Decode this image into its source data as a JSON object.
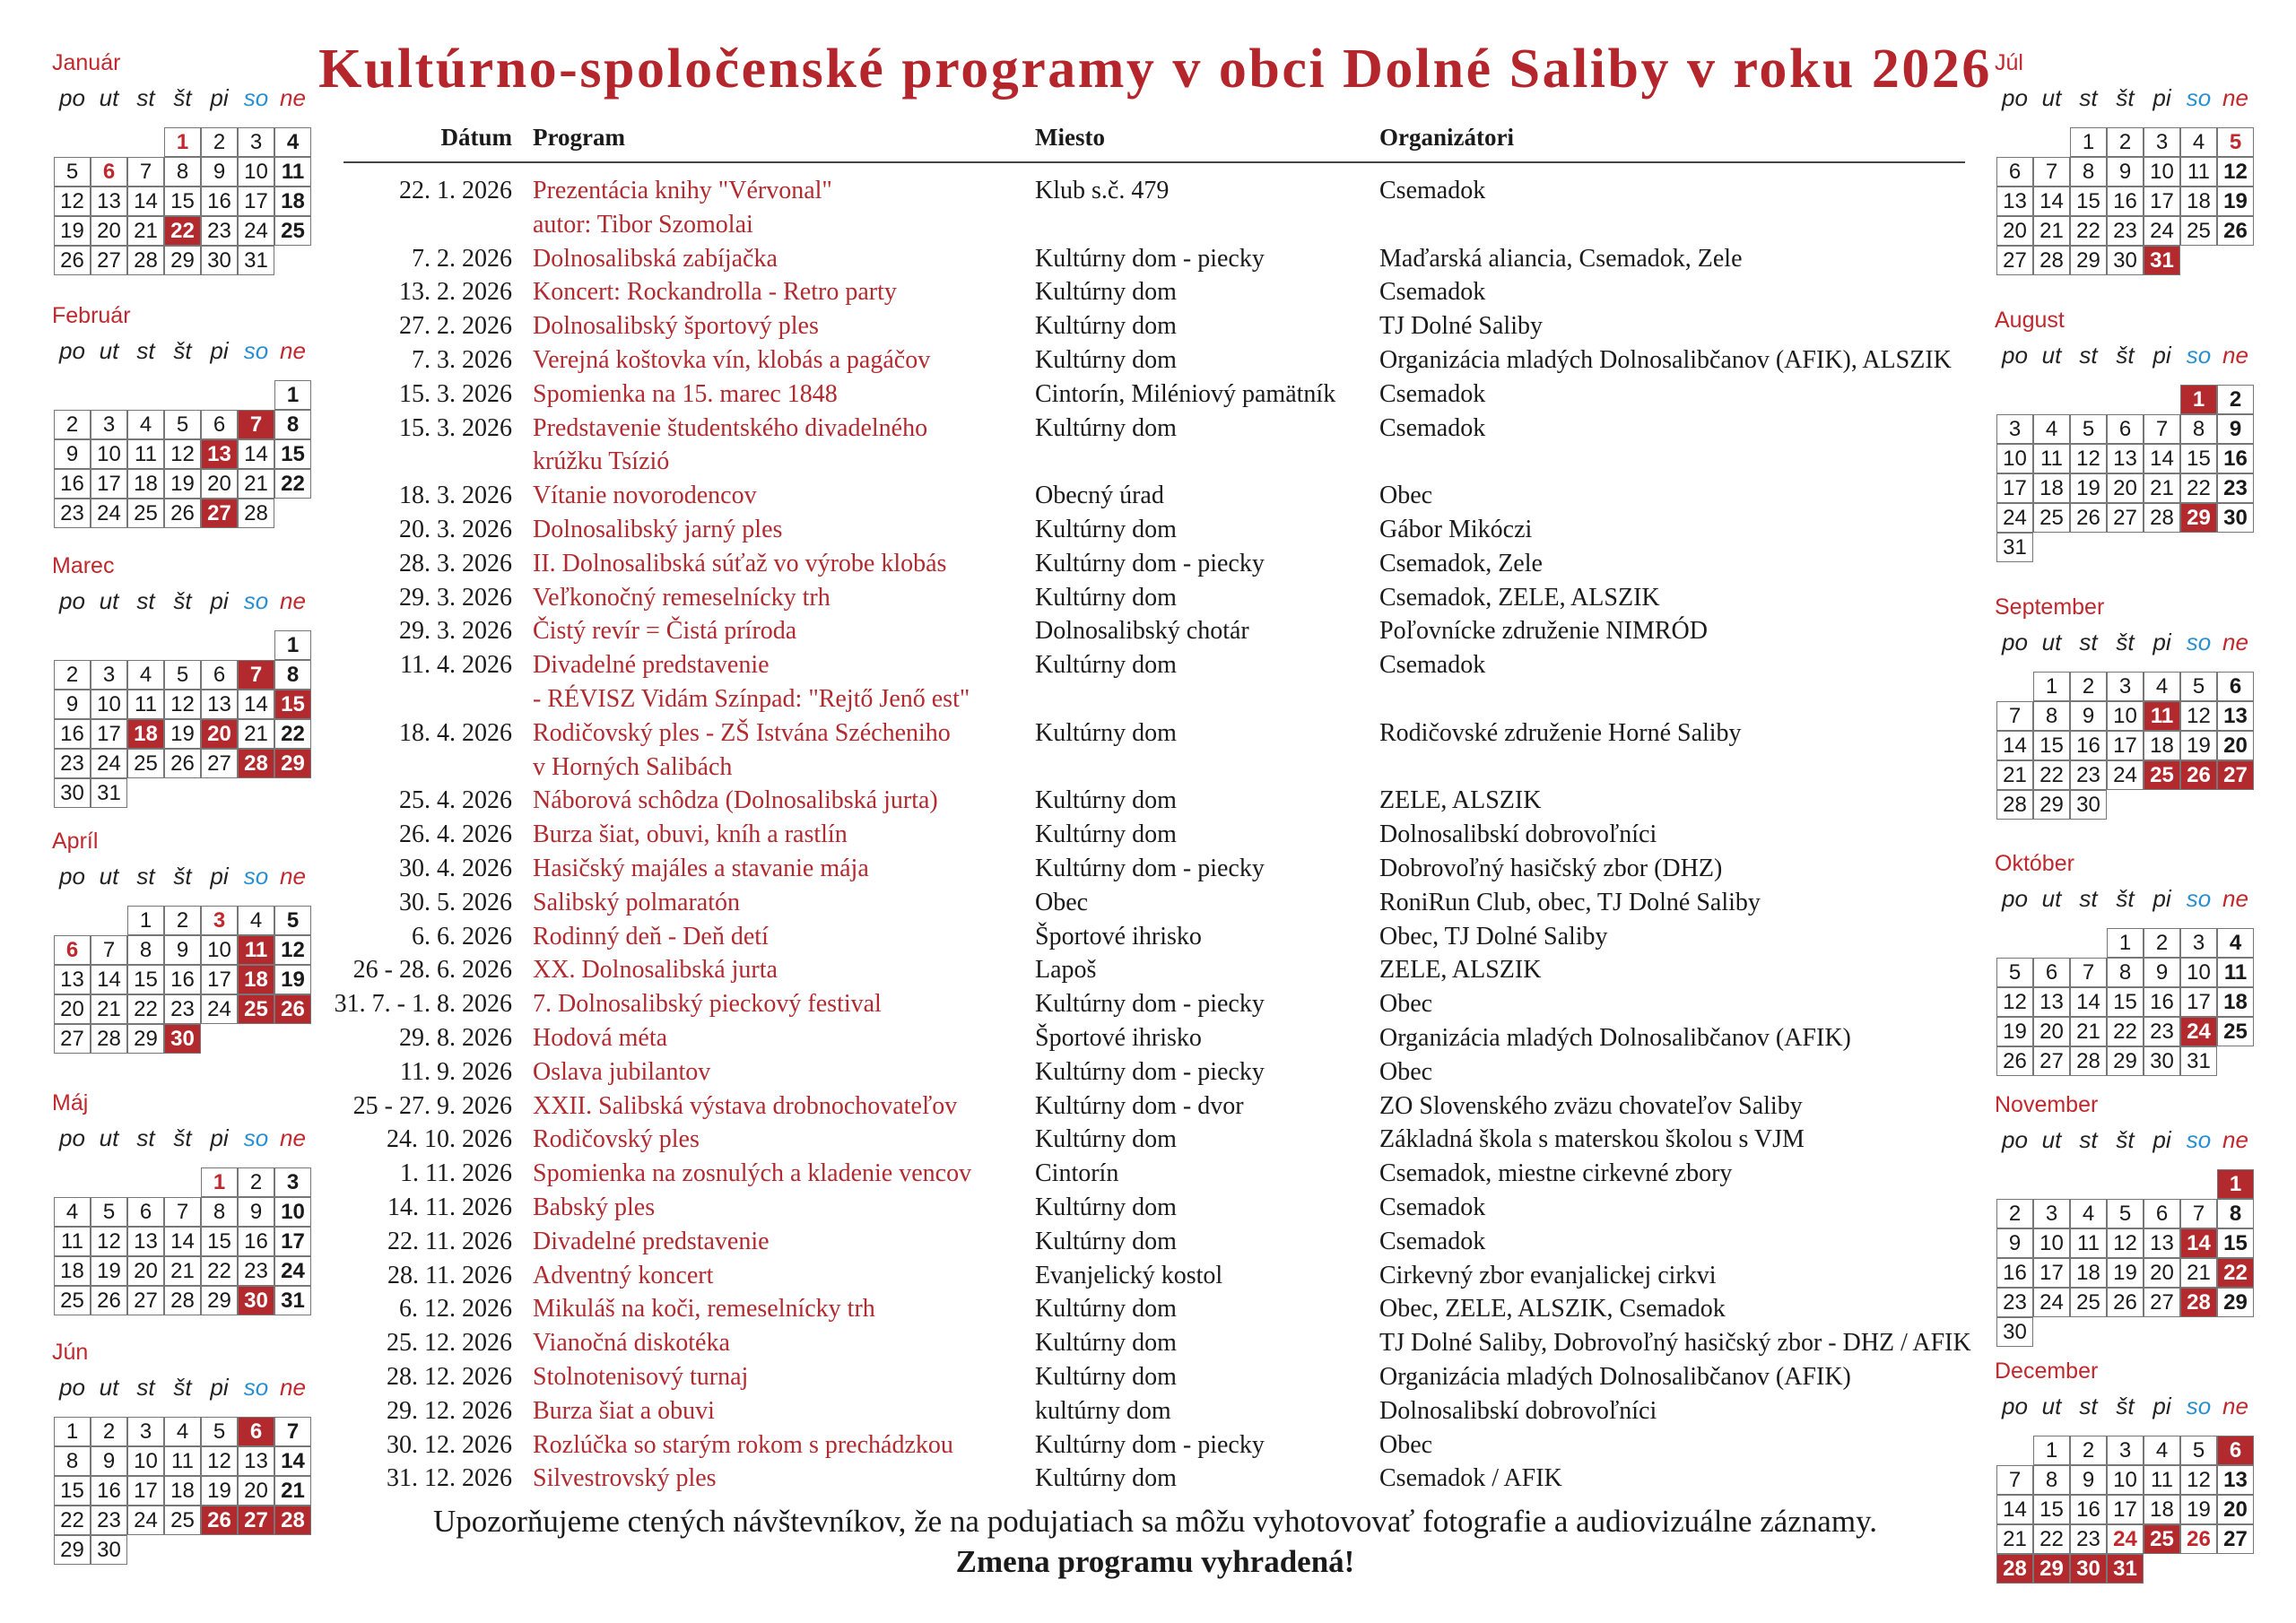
{
  "header": {
    "title": "Kultúrno-spoločenské programy v obci Dolné Saliby v roku 2026"
  },
  "table": {
    "columns": [
      "Dátum",
      "Program",
      "Miesto",
      "Organizátori"
    ],
    "rows": [
      {
        "date": "22. 1. 2026",
        "program": [
          "Prezentácia knihy \"Vérvonal\"",
          "autor: Tibor Szomolai"
        ],
        "place": "Klub s.č. 479",
        "organizer": "Csemadok"
      },
      {
        "date": "7. 2. 2026",
        "program": [
          "Dolnosalibská zabíjačka"
        ],
        "place": "Kultúrny dom - piecky",
        "organizer": "Maďarská aliancia, Csemadok, Zele"
      },
      {
        "date": "13. 2. 2026",
        "program": [
          "Koncert: Rockandrolla - Retro party"
        ],
        "place": "Kultúrny dom",
        "organizer": "Csemadok"
      },
      {
        "date": "27. 2. 2026",
        "program": [
          "Dolnosalibský športový ples"
        ],
        "place": "Kultúrny dom",
        "organizer": "TJ Dolné Saliby"
      },
      {
        "date": "7. 3. 2026",
        "program": [
          "Verejná koštovka vín, klobás a pagáčov"
        ],
        "place": "Kultúrny dom",
        "organizer": "Organizácia mladých Dolnosalibčanov (AFIK), ALSZIK"
      },
      {
        "date": "15. 3. 2026",
        "program": [
          "Spomienka na 15. marec 1848"
        ],
        "place": "Cintorín, Miléniový pamätník",
        "organizer": "Csemadok"
      },
      {
        "date": "15. 3. 2026",
        "program": [
          "Predstavenie študentského divadelného",
          "krúžku Tsízió"
        ],
        "place": "Kultúrny dom",
        "organizer": "Csemadok"
      },
      {
        "date": "18. 3. 2026",
        "program": [
          "Vítanie novorodencov"
        ],
        "place": "Obecný úrad",
        "organizer": "Obec"
      },
      {
        "date": "20. 3. 2026",
        "program": [
          "Dolnosalibský jarný ples"
        ],
        "place": "Kultúrny dom",
        "organizer": "Gábor Mikóczi"
      },
      {
        "date": "28. 3. 2026",
        "program": [
          "II. Dolnosalibská súťaž vo výrobe klobás"
        ],
        "place": "Kultúrny dom - piecky",
        "organizer": "Csemadok, Zele"
      },
      {
        "date": "29. 3. 2026",
        "program": [
          "Veľkonočný remeselnícky trh"
        ],
        "place": "Kultúrny dom",
        "organizer": "Csemadok, ZELE, ALSZIK"
      },
      {
        "date": "29. 3. 2026",
        "program": [
          "Čistý revír = Čistá príroda"
        ],
        "place": "Dolnosalibský chotár",
        "organizer": "Poľovnícke združenie NIMRÓD"
      },
      {
        "date": "11. 4. 2026",
        "program": [
          "Divadelné predstavenie",
          "- RÉVISZ Vidám Színpad: \"Rejtő Jenő est\""
        ],
        "place": "Kultúrny dom",
        "organizer": "Csemadok"
      },
      {
        "date": "18. 4. 2026",
        "program": [
          "Rodičovský ples - ZŠ Istvána Szécheniho",
          "v Horných Salibách"
        ],
        "place": "Kultúrny dom",
        "organizer": "Rodičovské združenie Horné Saliby"
      },
      {
        "date": "25. 4. 2026",
        "program": [
          "Náborová schôdza (Dolnosalibská jurta)"
        ],
        "place": "Kultúrny dom",
        "organizer": "ZELE, ALSZIK"
      },
      {
        "date": "26. 4. 2026",
        "program": [
          "Burza šiat, obuvi, kníh a rastlín"
        ],
        "place": "Kultúrny dom",
        "organizer": "Dolnosalibskí dobrovoľníci"
      },
      {
        "date": "30. 4. 2026",
        "program": [
          "Hasičský majáles a stavanie mája"
        ],
        "place": "Kultúrny dom - piecky",
        "organizer": "Dobrovoľný hasičský zbor (DHZ)"
      },
      {
        "date": "30. 5. 2026",
        "program": [
          "Salibský polmaratón"
        ],
        "place": "Obec",
        "organizer": "RoniRun Club, obec, TJ Dolné Saliby"
      },
      {
        "date": "6. 6. 2026",
        "program": [
          "Rodinný deň - Deň detí"
        ],
        "place": "Športové ihrisko",
        "organizer": "Obec, TJ Dolné Saliby"
      },
      {
        "date": "26 - 28. 6. 2026",
        "program": [
          "XX. Dolnosalibská jurta"
        ],
        "place": "Lapoš",
        "organizer": "ZELE, ALSZIK"
      },
      {
        "date": "31. 7. - 1. 8. 2026",
        "program": [
          "7. Dolnosalibský pieckový festival"
        ],
        "place": "Kultúrny dom - piecky",
        "organizer": "Obec"
      },
      {
        "date": "29. 8. 2026",
        "program": [
          "Hodová méta"
        ],
        "place": "Športové ihrisko",
        "organizer": "Organizácia mladých Dolnosalibčanov (AFIK)"
      },
      {
        "date": "11. 9. 2026",
        "program": [
          "Oslava jubilantov"
        ],
        "place": "Kultúrny dom - piecky",
        "organizer": "Obec"
      },
      {
        "date": "25 - 27. 9. 2026",
        "program": [
          "XXII. Salibská výstava drobnochovateľov"
        ],
        "place": "Kultúrny dom - dvor",
        "organizer": "ZO Slovenského zväzu chovateľov Saliby"
      },
      {
        "date": "24. 10. 2026",
        "program": [
          "Rodičovský ples"
        ],
        "place": "Kultúrny dom",
        "organizer": "Základná škola s materskou školou s VJM"
      },
      {
        "date": "1. 11. 2026",
        "program": [
          "Spomienka na zosnulých a kladenie vencov"
        ],
        "place": "Cintorín",
        "organizer": "Csemadok, miestne cirkevné zbory"
      },
      {
        "date": "14. 11. 2026",
        "program": [
          "Babský ples"
        ],
        "place": "Kultúrny dom",
        "organizer": "Csemadok"
      },
      {
        "date": "22. 11. 2026",
        "program": [
          "Divadelné predstavenie"
        ],
        "place": "Kultúrny dom",
        "organizer": "Csemadok"
      },
      {
        "date": "28. 11. 2026",
        "program": [
          "Adventný koncert"
        ],
        "place": "Evanjelický kostol",
        "organizer": "Cirkevný zbor evanjalickej cirkvi"
      },
      {
        "date": "6. 12. 2026",
        "program": [
          "Mikuláš na koči, remeselnícky trh"
        ],
        "place": "Kultúrny dom",
        "organizer": "Obec, ZELE, ALSZIK, Csemadok"
      },
      {
        "date": "25. 12. 2026",
        "program": [
          "Vianočná diskotéka"
        ],
        "place": "Kultúrny dom",
        "organizer": "TJ Dolné Saliby, Dobrovoľný hasičský zbor - DHZ / AFIK"
      },
      {
        "date": "28. 12. 2026",
        "program": [
          "Stolnotenisový turnaj"
        ],
        "place": "Kultúrny dom",
        "organizer": "Organizácia mladých Dolnosalibčanov (AFIK)"
      },
      {
        "date": "29. 12. 2026",
        "program": [
          "Burza šiat a obuvi"
        ],
        "place": "kultúrny dom",
        "organizer": "Dolnosalibskí dobrovoľníci"
      },
      {
        "date": "30. 12. 2026",
        "program": [
          "Rozlúčka so starým rokom s prechádzkou"
        ],
        "place": "Kultúrny dom - piecky",
        "organizer": "Obec"
      },
      {
        "date": "31. 12. 2026",
        "program": [
          "Silvestrovský ples"
        ],
        "place": "Kultúrny dom",
        "organizer": "Csemadok / AFIK"
      }
    ]
  },
  "footer": {
    "notice": "Upozorňujeme ctených návštevníkov, že na podujatiach sa môžu vyhotovovať fotografie a audiovizuálne záznamy.",
    "note": "Zmena programu vyhradená!"
  },
  "weekdays": [
    "po",
    "ut",
    "st",
    "št",
    "pi",
    "so",
    "ne"
  ],
  "calendars": [
    {
      "month": "Január",
      "weeks": [
        [
          null,
          null,
          null,
          1,
          2,
          3,
          4
        ],
        [
          5,
          6,
          7,
          8,
          9,
          10,
          11
        ],
        [
          12,
          13,
          14,
          15,
          16,
          17,
          18
        ],
        [
          19,
          20,
          21,
          22,
          23,
          24,
          25
        ],
        [
          26,
          27,
          28,
          29,
          30,
          31,
          null
        ]
      ],
      "holidays": [
        22
      ],
      "red_numbers": [
        1,
        6
      ]
    },
    {
      "month": "Február",
      "weeks": [
        [
          null,
          null,
          null,
          null,
          null,
          null,
          1
        ],
        [
          2,
          3,
          4,
          5,
          6,
          7,
          8
        ],
        [
          9,
          10,
          11,
          12,
          13,
          14,
          15
        ],
        [
          16,
          17,
          18,
          19,
          20,
          21,
          22
        ],
        [
          23,
          24,
          25,
          26,
          27,
          28,
          null
        ]
      ],
      "holidays": [
        7,
        13,
        27
      ],
      "red_numbers": []
    },
    {
      "month": "Marec",
      "weeks": [
        [
          null,
          null,
          null,
          null,
          null,
          null,
          1
        ],
        [
          2,
          3,
          4,
          5,
          6,
          7,
          8
        ],
        [
          9,
          10,
          11,
          12,
          13,
          14,
          15
        ],
        [
          16,
          17,
          18,
          19,
          20,
          21,
          22
        ],
        [
          23,
          24,
          25,
          26,
          27,
          28,
          29
        ],
        [
          30,
          31,
          null,
          null,
          null,
          null,
          null
        ]
      ],
      "holidays": [
        7,
        15,
        18,
        20,
        28,
        29
      ],
      "red_numbers": []
    },
    {
      "month": "Apríl",
      "weeks": [
        [
          null,
          null,
          1,
          2,
          3,
          4,
          5
        ],
        [
          6,
          7,
          8,
          9,
          10,
          11,
          12
        ],
        [
          13,
          14,
          15,
          16,
          17,
          18,
          19
        ],
        [
          20,
          21,
          22,
          23,
          24,
          25,
          26
        ],
        [
          27,
          28,
          29,
          30,
          null,
          null,
          null
        ]
      ],
      "holidays": [
        11,
        18,
        25,
        26,
        30
      ],
      "red_numbers": [
        3,
        6
      ]
    },
    {
      "month": "Máj",
      "weeks": [
        [
          null,
          null,
          null,
          null,
          1,
          2,
          3
        ],
        [
          4,
          5,
          6,
          7,
          8,
          9,
          10
        ],
        [
          11,
          12,
          13,
          14,
          15,
          16,
          17
        ],
        [
          18,
          19,
          20,
          21,
          22,
          23,
          24
        ],
        [
          25,
          26,
          27,
          28,
          29,
          30,
          31
        ]
      ],
      "holidays": [
        30
      ],
      "red_numbers": [
        1
      ]
    },
    {
      "month": "Jún",
      "weeks": [
        [
          1,
          2,
          3,
          4,
          5,
          6,
          7
        ],
        [
          8,
          9,
          10,
          11,
          12,
          13,
          14
        ],
        [
          15,
          16,
          17,
          18,
          19,
          20,
          21
        ],
        [
          22,
          23,
          24,
          25,
          26,
          27,
          28
        ],
        [
          29,
          30,
          null,
          null,
          null,
          null,
          null
        ]
      ],
      "holidays": [
        6,
        26,
        27,
        28
      ],
      "red_numbers": []
    },
    {
      "month": "Júl",
      "weeks": [
        [
          null,
          null,
          1,
          2,
          3,
          4,
          5
        ],
        [
          6,
          7,
          8,
          9,
          10,
          11,
          12
        ],
        [
          13,
          14,
          15,
          16,
          17,
          18,
          19
        ],
        [
          20,
          21,
          22,
          23,
          24,
          25,
          26
        ],
        [
          27,
          28,
          29,
          30,
          31,
          null,
          null
        ]
      ],
      "holidays": [
        31
      ],
      "red_numbers": [
        5
      ]
    },
    {
      "month": "August",
      "weeks": [
        [
          null,
          null,
          null,
          null,
          null,
          1,
          2
        ],
        [
          3,
          4,
          5,
          6,
          7,
          8,
          9
        ],
        [
          10,
          11,
          12,
          13,
          14,
          15,
          16
        ],
        [
          17,
          18,
          19,
          20,
          21,
          22,
          23
        ],
        [
          24,
          25,
          26,
          27,
          28,
          29,
          30
        ],
        [
          31,
          null,
          null,
          null,
          null,
          null,
          null
        ]
      ],
      "holidays": [
        1,
        29
      ],
      "red_numbers": []
    },
    {
      "month": "September",
      "weeks": [
        [
          null,
          1,
          2,
          3,
          4,
          5,
          6
        ],
        [
          7,
          8,
          9,
          10,
          11,
          12,
          13
        ],
        [
          14,
          15,
          16,
          17,
          18,
          19,
          20
        ],
        [
          21,
          22,
          23,
          24,
          25,
          26,
          27
        ],
        [
          28,
          29,
          30,
          null,
          null,
          null,
          null
        ]
      ],
      "holidays": [
        11,
        25,
        26,
        27
      ],
      "red_numbers": []
    },
    {
      "month": "Október",
      "weeks": [
        [
          null,
          null,
          null,
          1,
          2,
          3,
          4
        ],
        [
          5,
          6,
          7,
          8,
          9,
          10,
          11
        ],
        [
          12,
          13,
          14,
          15,
          16,
          17,
          18
        ],
        [
          19,
          20,
          21,
          22,
          23,
          24,
          25
        ],
        [
          26,
          27,
          28,
          29,
          30,
          31,
          null
        ]
      ],
      "holidays": [
        24
      ],
      "red_numbers": []
    },
    {
      "month": "November",
      "weeks": [
        [
          null,
          null,
          null,
          null,
          null,
          null,
          1
        ],
        [
          2,
          3,
          4,
          5,
          6,
          7,
          8
        ],
        [
          9,
          10,
          11,
          12,
          13,
          14,
          15
        ],
        [
          16,
          17,
          18,
          19,
          20,
          21,
          22
        ],
        [
          23,
          24,
          25,
          26,
          27,
          28,
          29
        ],
        [
          30,
          null,
          null,
          null,
          null,
          null,
          null
        ]
      ],
      "holidays": [
        1,
        14,
        22,
        28
      ],
      "red_numbers": []
    },
    {
      "month": "December",
      "weeks": [
        [
          null,
          1,
          2,
          3,
          4,
          5,
          6
        ],
        [
          7,
          8,
          9,
          10,
          11,
          12,
          13
        ],
        [
          14,
          15,
          16,
          17,
          18,
          19,
          20
        ],
        [
          21,
          22,
          23,
          24,
          25,
          26,
          27
        ],
        [
          28,
          29,
          30,
          31,
          null,
          null,
          null
        ]
      ],
      "holidays": [
        6,
        25,
        28,
        29,
        30,
        31
      ],
      "red_numbers": [
        24,
        26
      ]
    }
  ]
}
